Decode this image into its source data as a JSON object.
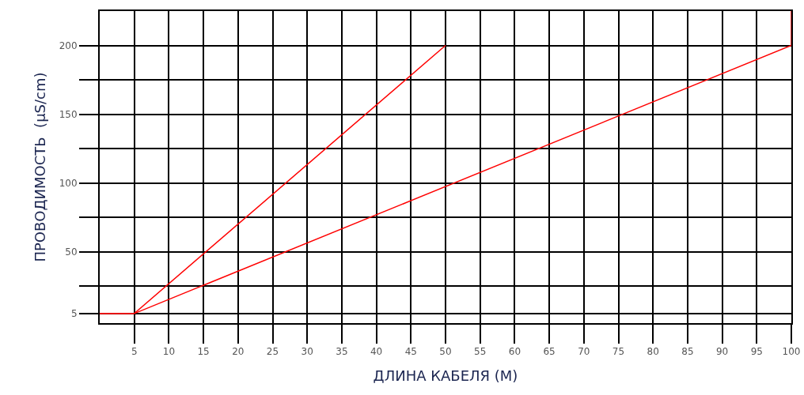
{
  "chart_data": {
    "type": "line",
    "xlabel": "ДЛИНА КАБЕЛЯ (М)",
    "ylabel": "ПРОВОДИМОСТЬ  (µS/cm)",
    "series": [
      {
        "color": "#ff0000",
        "x": [
          0,
          5,
          50
        ],
        "values": [
          5,
          5,
          200
        ]
      },
      {
        "color": "#ff0000",
        "x": [
          0,
          5,
          100,
          100
        ],
        "values": [
          5,
          5,
          200,
          225
        ]
      }
    ],
    "xlim": [
      0,
      100
    ],
    "xticks": [
      5,
      10,
      15,
      20,
      25,
      30,
      35,
      40,
      45,
      50,
      55,
      60,
      65,
      70,
      75,
      80,
      85,
      90,
      95,
      100
    ],
    "ylim": [
      -2,
      225
    ],
    "yticks": [
      5,
      {
        "value": 25,
        "label": null
      },
      50,
      {
        "value": 75,
        "label": null
      },
      100,
      {
        "value": 125,
        "label": null
      },
      150,
      {
        "value": 175,
        "label": null
      },
      200
    ],
    "grid": true,
    "marker": "none",
    "line_style": "solid"
  }
}
